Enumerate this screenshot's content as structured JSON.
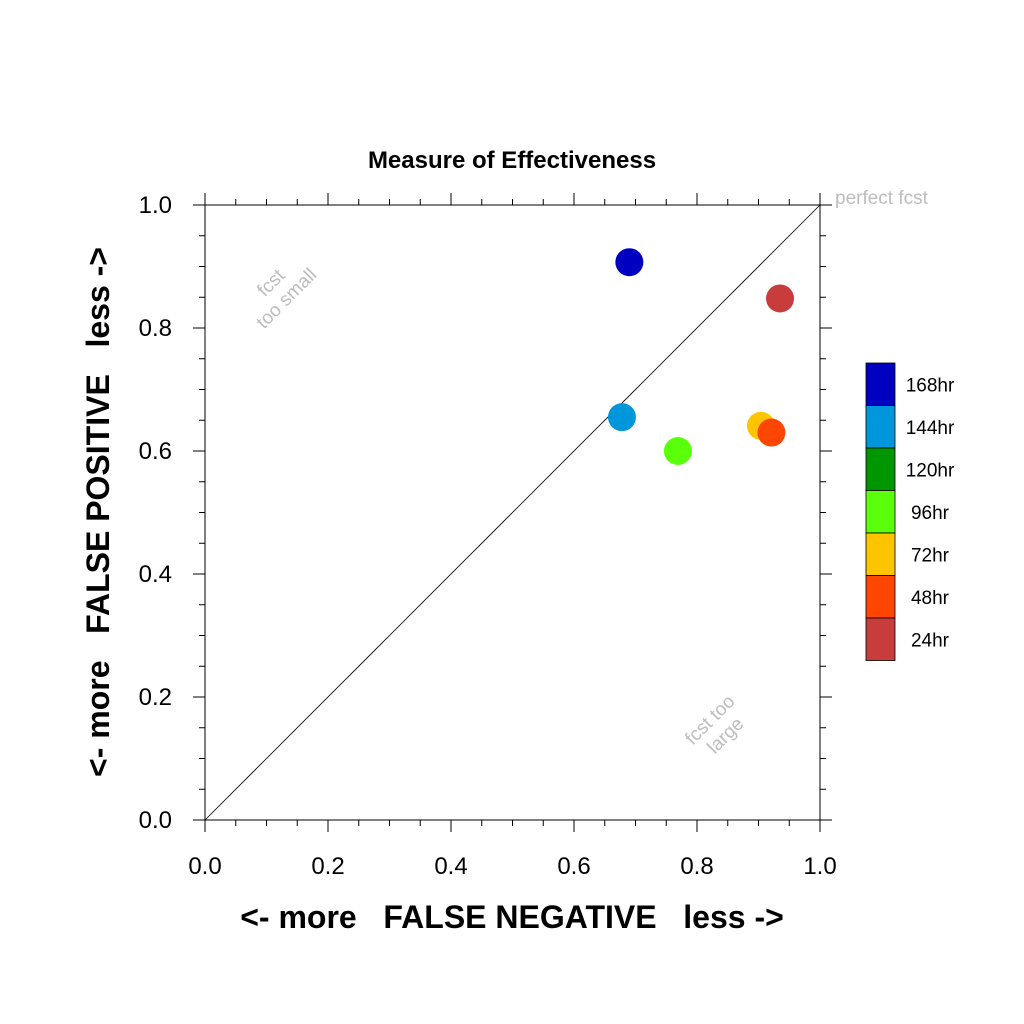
{
  "chart_data": {
    "type": "scatter",
    "title": "Measure of Effectiveness",
    "xlabel": "<- more   FALSE NEGATIVE   less ->",
    "ylabel": "<- more   FALSE POSITIVE   less ->",
    "xlim": [
      0.0,
      1.0
    ],
    "ylim": [
      0.0,
      1.0
    ],
    "x_ticks": [
      "0.0",
      "0.2",
      "0.4",
      "0.6",
      "0.8",
      "1.0"
    ],
    "y_ticks": [
      "0.0",
      "0.2",
      "0.4",
      "0.6",
      "0.8",
      "1.0"
    ],
    "diagonal_line": true,
    "annotations": {
      "perfect": "perfect fcst",
      "small_line1": "fcst",
      "small_line2": "too small",
      "large_line1": "fcst too",
      "large_line2": "large"
    },
    "series": [
      {
        "name": "168hr",
        "color": "#0000c0",
        "x": 0.69,
        "y": 0.907
      },
      {
        "name": "144hr",
        "color": "#0096dc",
        "x": 0.678,
        "y": 0.655
      },
      {
        "name": "120hr",
        "color": "#009600",
        "x": null,
        "y": null
      },
      {
        "name": "96hr",
        "color": "#5aff0a",
        "x": 0.769,
        "y": 0.6
      },
      {
        "name": "72hr",
        "color": "#ffc400",
        "x": 0.904,
        "y": 0.641
      },
      {
        "name": "48hr",
        "color": "#ff4600",
        "x": 0.921,
        "y": 0.63
      },
      {
        "name": "24hr",
        "color": "#c83c3c",
        "x": 0.935,
        "y": 0.848
      }
    ],
    "legend_position": "right"
  }
}
